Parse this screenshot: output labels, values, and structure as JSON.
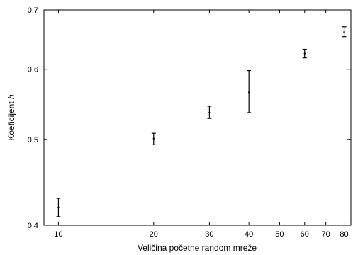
{
  "chart_data": {
    "type": "scatter",
    "xlabel": "Veličina početne random mreže",
    "ylabel_main": "Koeficijent ",
    "ylabel_italic": "h",
    "x_scale": "log",
    "y_scale": "log",
    "xlim": [
      9,
      84
    ],
    "ylim": [
      0.4,
      0.7
    ],
    "x_ticks": [
      10,
      20,
      30,
      40,
      50,
      60,
      70,
      80
    ],
    "x_tick_labels": [
      "10",
      "20",
      "30",
      "40",
      "50",
      "60",
      "70",
      "80"
    ],
    "y_ticks": [
      0.4,
      0.5,
      0.6,
      0.7
    ],
    "y_tick_labels": [
      "0.4",
      "0.5",
      "0.6",
      "0.7"
    ],
    "grid": false,
    "points": [
      {
        "x": 10,
        "y": 0.419,
        "ylow": 0.409,
        "yhigh": 0.429
      },
      {
        "x": 20,
        "y": 0.501,
        "ylow": 0.493,
        "yhigh": 0.508
      },
      {
        "x": 30,
        "y": 0.536,
        "ylow": 0.528,
        "yhigh": 0.545
      },
      {
        "x": 40,
        "y": 0.565,
        "ylow": 0.536,
        "yhigh": 0.598
      },
      {
        "x": 60,
        "y": 0.625,
        "ylow": 0.618,
        "yhigh": 0.632
      },
      {
        "x": 80,
        "y": 0.661,
        "ylow": 0.653,
        "yhigh": 0.67
      }
    ]
  }
}
